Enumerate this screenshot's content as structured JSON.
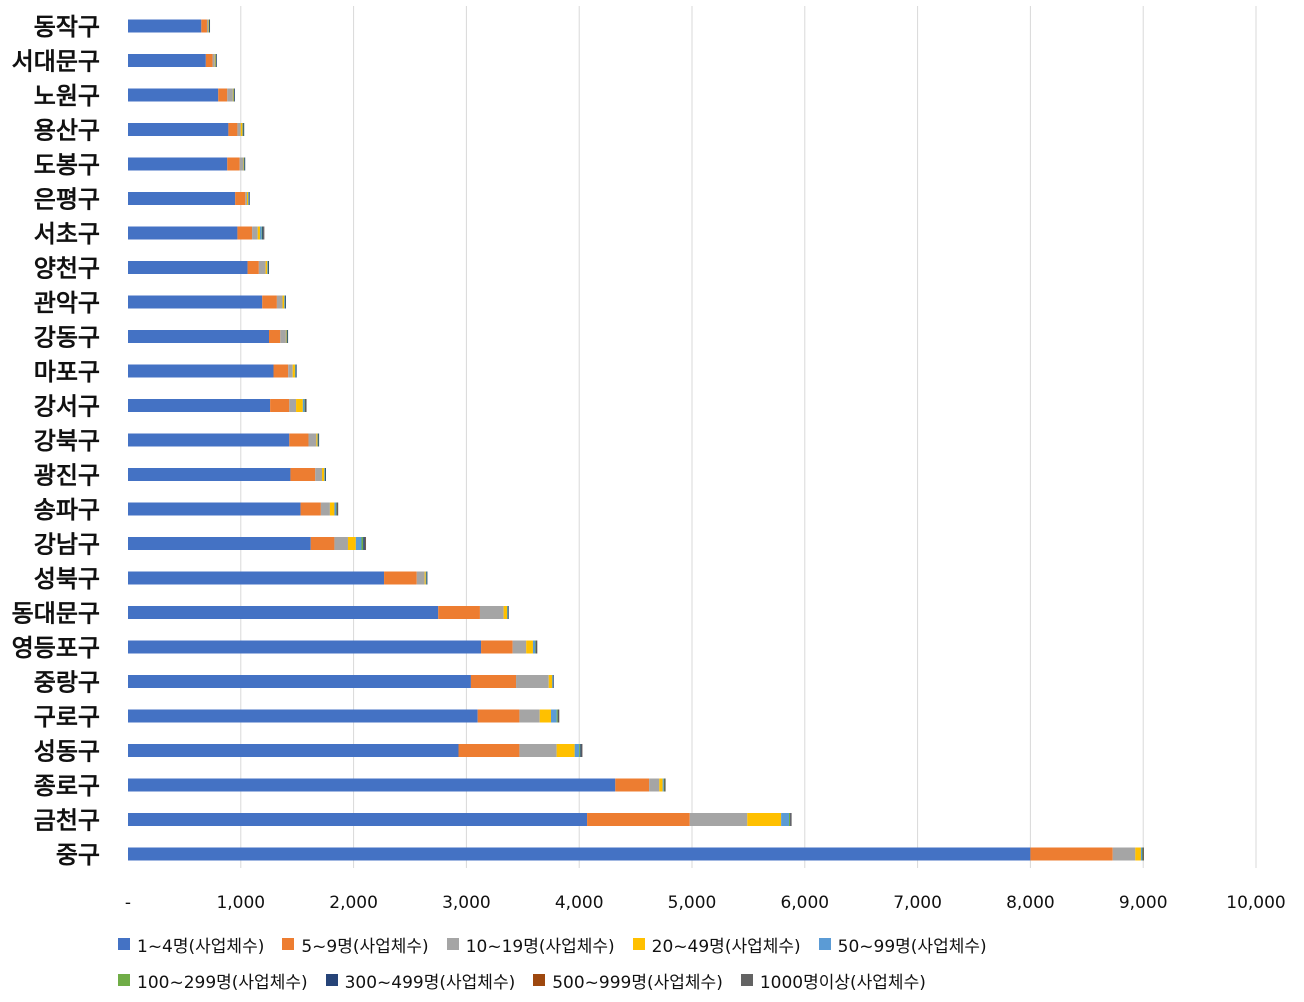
{
  "chart_data": {
    "type": "bar",
    "orientation": "horizontal",
    "stacked": true,
    "title": "",
    "xlabel": "",
    "ylabel": "",
    "xlim": [
      0,
      10000
    ],
    "x_ticks": [
      0,
      1000,
      2000,
      3000,
      4000,
      5000,
      6000,
      7000,
      8000,
      9000,
      10000
    ],
    "x_tick_labels": [
      "-",
      "1,000",
      "2,000",
      "3,000",
      "4,000",
      "5,000",
      "6,000",
      "7,000",
      "8,000",
      "9,000",
      "10,000"
    ],
    "grid": true,
    "legend_position": "bottom",
    "categories": [
      "동작구",
      "서대문구",
      "노원구",
      "용산구",
      "도봉구",
      "은평구",
      "서초구",
      "양천구",
      "관악구",
      "강동구",
      "마포구",
      "강서구",
      "강북구",
      "광진구",
      "송파구",
      "강남구",
      "성북구",
      "동대문구",
      "영등포구",
      "중랑구",
      "구로구",
      "성동구",
      "종로구",
      "금천구",
      "중구"
    ],
    "series": [
      {
        "name": "1~4명(사업체수)",
        "color": "#4472C4",
        "values": [
          650,
          690,
          800,
          890,
          880,
          950,
          970,
          1060,
          1190,
          1250,
          1290,
          1260,
          1430,
          1440,
          1530,
          1620,
          2270,
          2750,
          3130,
          3040,
          3100,
          2930,
          4320,
          4070,
          8000
        ]
      },
      {
        "name": "5~9명(사업체수)",
        "color": "#ED7D31",
        "values": [
          50,
          60,
          80,
          80,
          110,
          90,
          130,
          100,
          130,
          100,
          130,
          170,
          170,
          220,
          180,
          210,
          290,
          370,
          280,
          400,
          370,
          540,
          300,
          910,
          730
        ]
      },
      {
        "name": "10~19명(사업체수)",
        "color": "#A5A5A5",
        "values": [
          10,
          20,
          50,
          30,
          30,
          15,
          50,
          60,
          50,
          50,
          40,
          60,
          70,
          60,
          80,
          120,
          70,
          210,
          120,
          290,
          180,
          330,
          90,
          510,
          200
        ]
      },
      {
        "name": "20~49명(사업체수)",
        "color": "#FFC000",
        "values": [
          5,
          5,
          5,
          15,
          5,
          10,
          20,
          15,
          15,
          5,
          20,
          60,
          10,
          20,
          40,
          70,
          10,
          30,
          60,
          30,
          100,
          160,
          30,
          300,
          50
        ]
      },
      {
        "name": "50~99명(사업체수)",
        "color": "#5B9BD5",
        "values": [
          3,
          3,
          3,
          5,
          5,
          5,
          15,
          5,
          5,
          5,
          5,
          15,
          5,
          5,
          15,
          50,
          5,
          5,
          20,
          5,
          50,
          40,
          10,
          70,
          10
        ]
      },
      {
        "name": "100~299명(사업체수)",
        "color": "#70AD47",
        "values": [
          2,
          2,
          2,
          3,
          2,
          2,
          5,
          3,
          3,
          2,
          3,
          5,
          2,
          3,
          5,
          15,
          2,
          3,
          5,
          2,
          10,
          10,
          5,
          10,
          5
        ]
      },
      {
        "name": "300~499명(사업체수)",
        "color": "#264478",
        "values": [
          1,
          1,
          1,
          1,
          1,
          1,
          10,
          1,
          1,
          1,
          1,
          5,
          1,
          1,
          5,
          15,
          1,
          1,
          5,
          1,
          5,
          10,
          3,
          5,
          3
        ]
      },
      {
        "name": "500~999명(사업체수)",
        "color": "#9E480E",
        "values": [
          0,
          0,
          0,
          0,
          0,
          0,
          1,
          0,
          0,
          0,
          0,
          1,
          0,
          0,
          1,
          3,
          0,
          0,
          1,
          0,
          1,
          1,
          1,
          1,
          1
        ]
      },
      {
        "name": "1000명이상(사업체수)",
        "color": "#636363",
        "values": [
          0,
          0,
          0,
          0,
          0,
          0,
          1,
          0,
          0,
          0,
          0,
          1,
          0,
          0,
          1,
          2,
          0,
          0,
          1,
          0,
          1,
          1,
          1,
          1,
          1
        ]
      }
    ]
  }
}
